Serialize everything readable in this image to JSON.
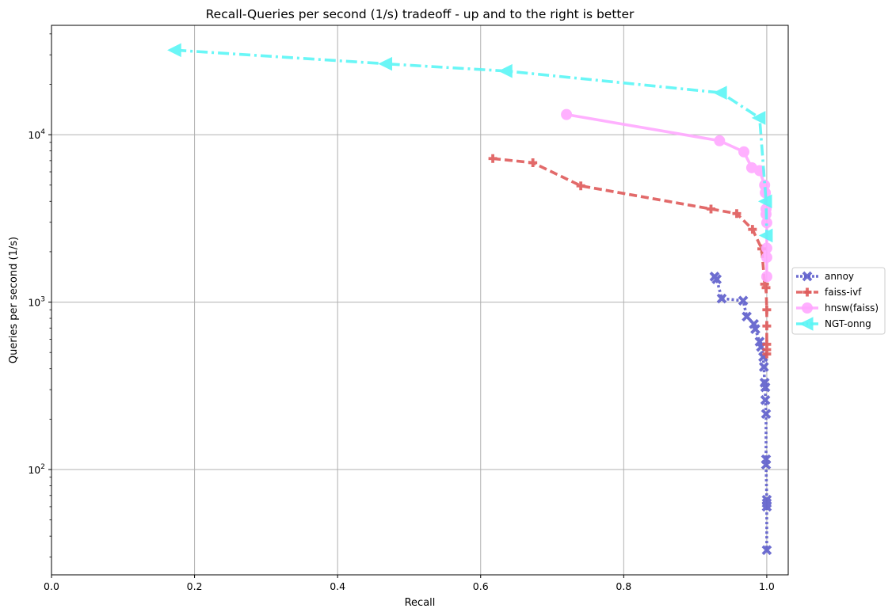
{
  "chart_data": {
    "type": "line",
    "title": "Recall-Queries per second (1/s) tradeoff - up and to the right is better",
    "xlabel": "Recall",
    "ylabel": "Queries per second (1/s)",
    "xlim": [
      0.0,
      1.03
    ],
    "ylim": [
      23.5,
      45000
    ],
    "yscale": "log",
    "grid": true,
    "legend_position": "outside-right",
    "xticks": [
      "0.0",
      "0.2",
      "0.4",
      "0.6",
      "0.8",
      "1.0"
    ],
    "yticks": [
      {
        "base": "10",
        "exp": "2"
      },
      {
        "base": "10",
        "exp": "3"
      },
      {
        "base": "10",
        "exp": "4"
      }
    ],
    "series": [
      {
        "name": "annoy",
        "color": "#5e5ecc",
        "marker": "x",
        "dash": "dotted",
        "x": [
          0.927,
          0.93,
          0.937,
          0.967,
          0.972,
          0.982,
          0.984,
          0.99,
          0.992,
          0.995,
          0.996,
          0.997,
          0.998,
          0.998,
          0.999,
          0.999,
          0.999,
          1.0,
          1.0,
          1.0,
          1.0
        ],
        "y": [
          1420,
          1370,
          1050,
          1020,
          820,
          740,
          690,
          580,
          540,
          470,
          410,
          330,
          310,
          260,
          215,
          115,
          107,
          66,
          63,
          60,
          33
        ]
      },
      {
        "name": "faiss-ivf",
        "color": "#df5a5a",
        "marker": "plus",
        "dash": "dashed",
        "x": [
          0.617,
          0.673,
          0.74,
          0.922,
          0.958,
          0.98,
          0.993,
          0.997,
          0.999,
          1.0,
          1.0,
          1.0,
          1.0,
          1.0
        ],
        "y": [
          7200,
          6800,
          4950,
          3600,
          3380,
          2720,
          2080,
          1280,
          1220,
          900,
          720,
          560,
          520,
          490
        ]
      },
      {
        "name": "hnsw(faiss)",
        "color": "#ffa8ff",
        "marker": "circle",
        "dash": "solid",
        "x": [
          0.72,
          0.934,
          0.968,
          0.979,
          0.99,
          0.997,
          0.998,
          0.999,
          0.999,
          1.0,
          1.0,
          1.0,
          1.0
        ],
        "y": [
          13200,
          9200,
          7900,
          6350,
          6100,
          5000,
          4500,
          3600,
          3350,
          2980,
          2100,
          1850,
          1420
        ]
      },
      {
        "name": "NGT-onng",
        "color": "#5af6f6",
        "marker": "triangle-left",
        "dash": "dashdot",
        "x": [
          0.173,
          0.468,
          0.636,
          0.936,
          0.99,
          0.999,
          1.0
        ],
        "y": [
          32000,
          26500,
          24000,
          17800,
          12600,
          4000,
          2500
        ]
      }
    ]
  }
}
